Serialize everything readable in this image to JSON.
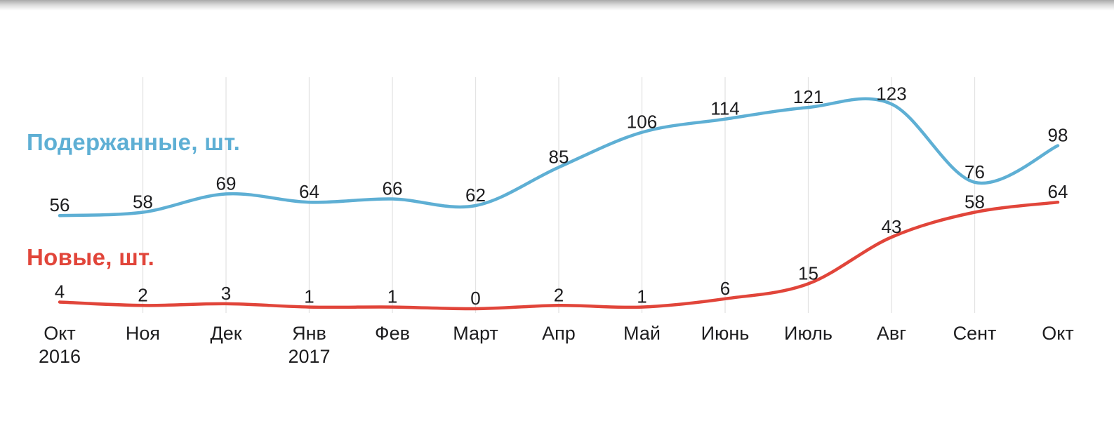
{
  "chart_data": {
    "type": "line",
    "categories": [
      [
        "Окт",
        "2016"
      ],
      [
        "Ноя",
        ""
      ],
      [
        "Дек",
        ""
      ],
      [
        "Янв",
        "2017"
      ],
      [
        "Фев",
        ""
      ],
      [
        "Март",
        ""
      ],
      [
        "Апр",
        ""
      ],
      [
        "Май",
        ""
      ],
      [
        "Июнь",
        ""
      ],
      [
        "Июль",
        ""
      ],
      [
        "Авг",
        ""
      ],
      [
        "Сент",
        ""
      ],
      [
        "Окт",
        ""
      ]
    ],
    "series": [
      {
        "name": "Подержанные, шт.",
        "color": "#5eafd4",
        "values": [
          56,
          58,
          69,
          64,
          66,
          62,
          85,
          106,
          114,
          121,
          123,
          76,
          98
        ]
      },
      {
        "name": "Новые, шт.",
        "color": "#e1453a",
        "values": [
          4,
          2,
          3,
          1,
          1,
          0,
          2,
          1,
          6,
          15,
          43,
          58,
          64
        ]
      }
    ],
    "title": "",
    "xlabel": "",
    "ylabel": "",
    "ylim": [
      0,
      140
    ],
    "grid": "vertical",
    "grid_color": "#e3e3e3",
    "value_label_color": "#1d1d1f",
    "axis_label_color": "#1d1d1f",
    "legend_position": "left-inline",
    "value_labels_shown": true
  }
}
